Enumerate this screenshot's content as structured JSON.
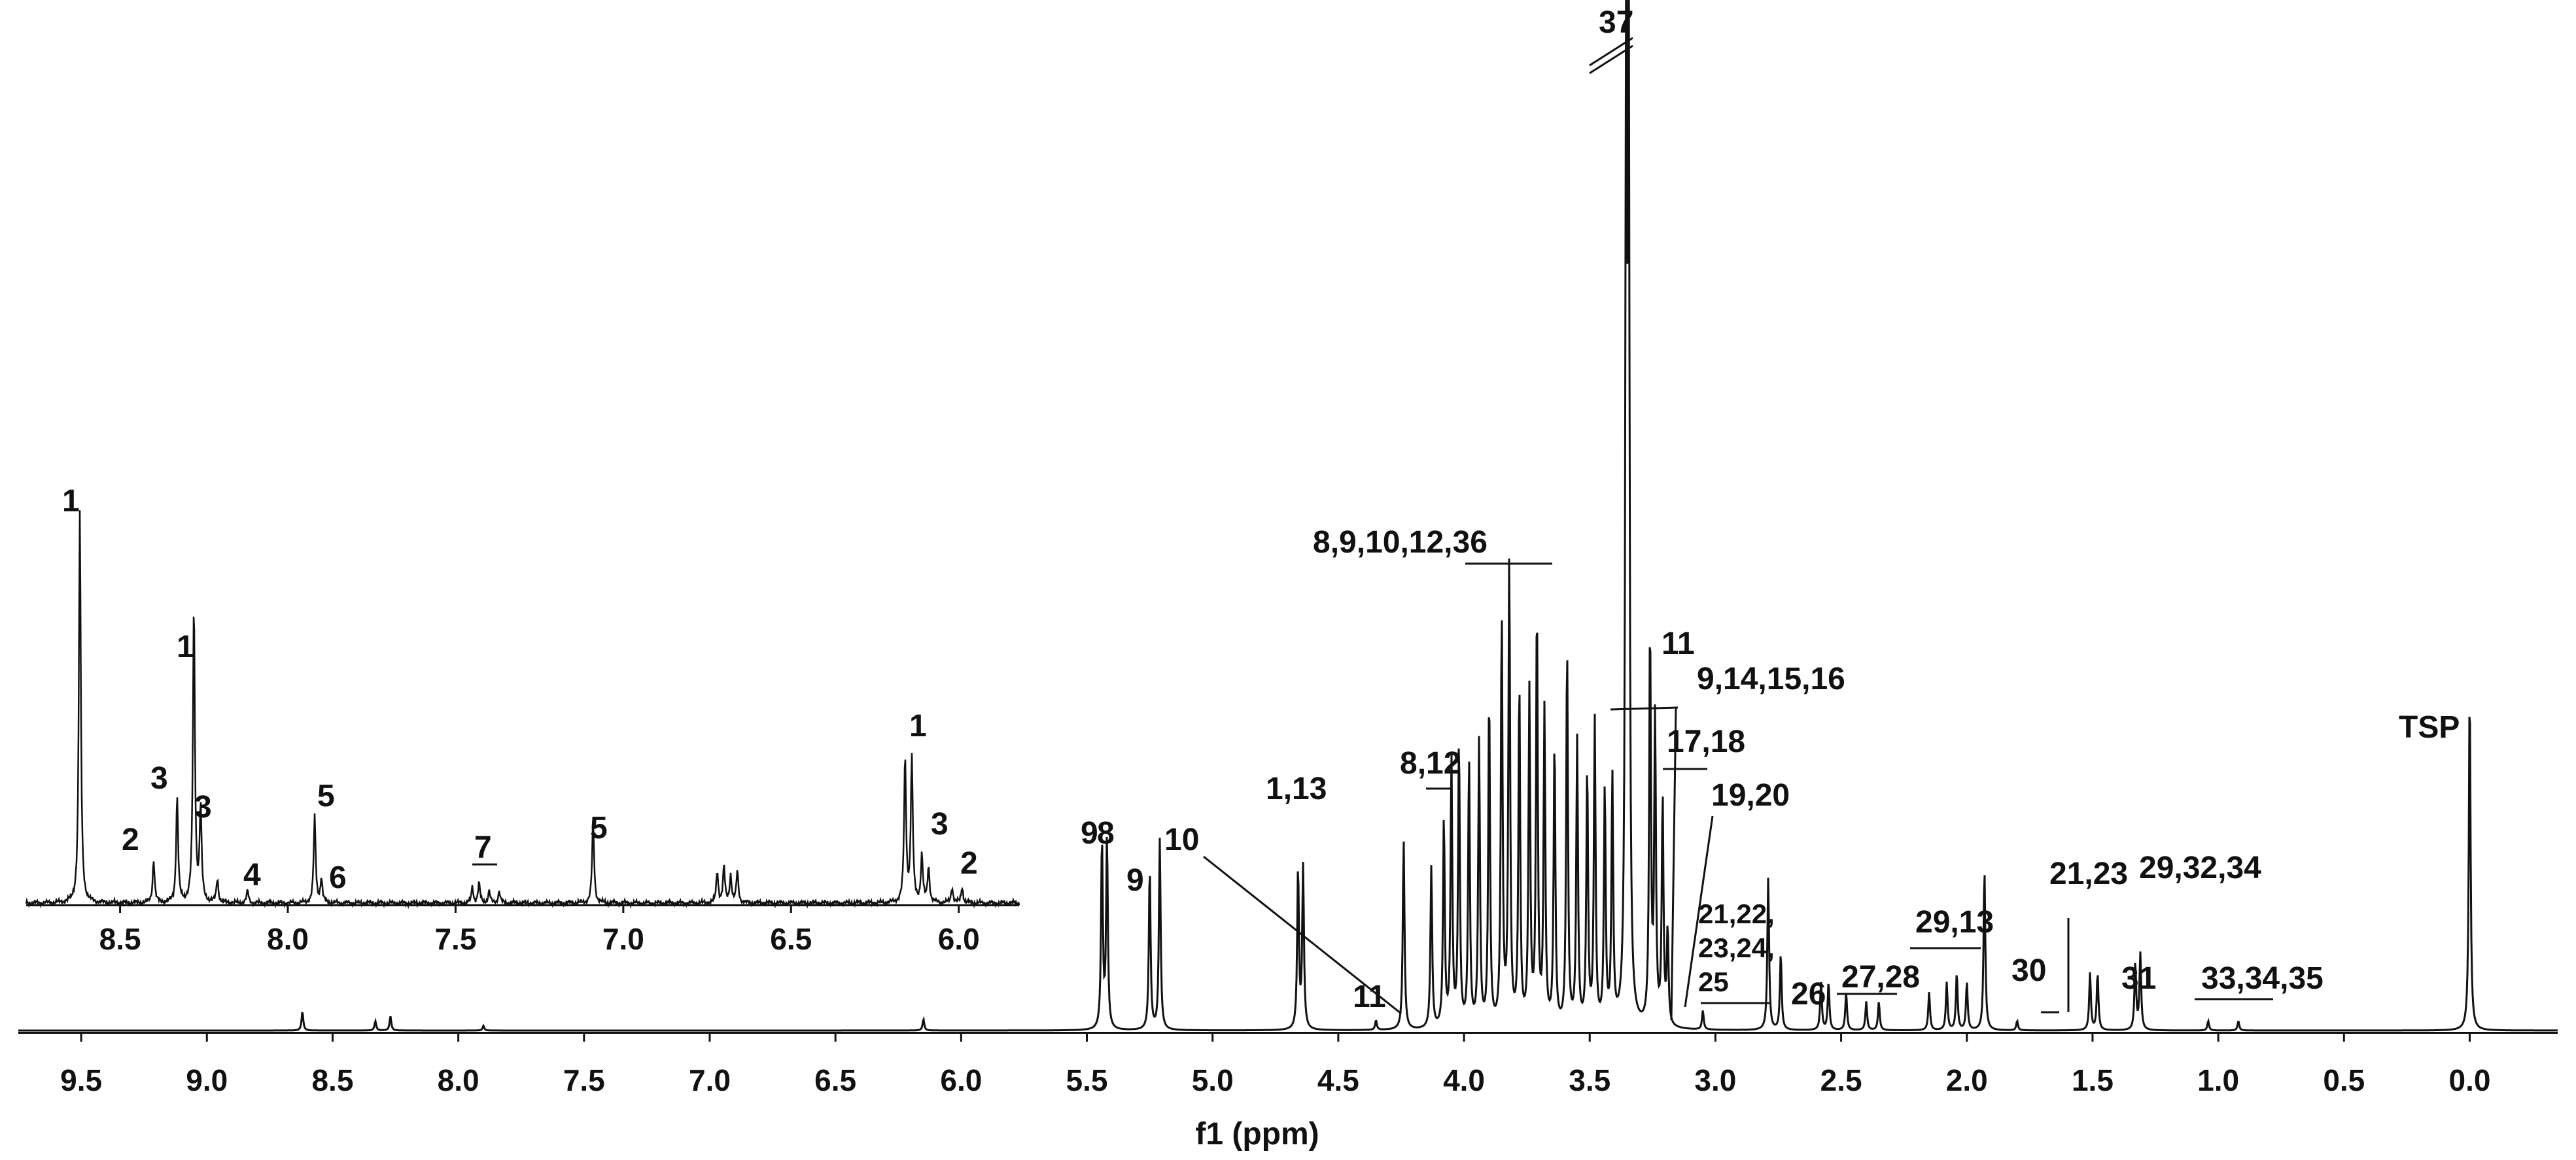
{
  "chart_data": [
    {
      "type": "line",
      "title": "",
      "xlabel": "f1 (ppm)",
      "ylabel": "",
      "x_reversed": true,
      "xlim": [
        -0.35,
        9.75
      ],
      "x_ticks": [
        "9.5",
        "9.0",
        "8.5",
        "8.0",
        "7.5",
        "7.0",
        "6.5",
        "6.0",
        "5.5",
        "5.0",
        "4.5",
        "4.0",
        "3.5",
        "3.0",
        "2.5",
        "2.0",
        "1.5",
        "1.0",
        "0.5",
        "0.0"
      ],
      "grid": false,
      "peaks": [
        {
          "ppm": 8.62,
          "h": 0.02
        },
        {
          "ppm": 8.33,
          "h": 0.01
        },
        {
          "ppm": 8.27,
          "h": 0.015
        },
        {
          "ppm": 7.9,
          "h": 0.005
        },
        {
          "ppm": 6.15,
          "h": 0.012
        },
        {
          "ppm": 5.44,
          "h": 0.2
        },
        {
          "ppm": 5.42,
          "h": 0.2
        },
        {
          "ppm": 5.25,
          "h": 0.17
        },
        {
          "ppm": 5.21,
          "h": 0.2
        },
        {
          "ppm": 4.66,
          "h": 0.17
        },
        {
          "ppm": 4.64,
          "h": 0.17
        },
        {
          "ppm": 4.35,
          "h": 0.01
        },
        {
          "ppm": 4.24,
          "h": 0.2
        },
        {
          "ppm": 4.13,
          "h": 0.17
        },
        {
          "ppm": 4.08,
          "h": 0.22
        },
        {
          "ppm": 4.05,
          "h": 0.28
        },
        {
          "ppm": 4.02,
          "h": 0.3
        },
        {
          "ppm": 3.98,
          "h": 0.28
        },
        {
          "ppm": 3.94,
          "h": 0.3
        },
        {
          "ppm": 3.9,
          "h": 0.35
        },
        {
          "ppm": 3.85,
          "h": 0.43
        },
        {
          "ppm": 3.82,
          "h": 0.49
        },
        {
          "ppm": 3.78,
          "h": 0.36
        },
        {
          "ppm": 3.74,
          "h": 0.35
        },
        {
          "ppm": 3.71,
          "h": 0.44
        },
        {
          "ppm": 3.68,
          "h": 0.33
        },
        {
          "ppm": 3.64,
          "h": 0.3
        },
        {
          "ppm": 3.59,
          "h": 0.4
        },
        {
          "ppm": 3.55,
          "h": 0.3
        },
        {
          "ppm": 3.51,
          "h": 0.27
        },
        {
          "ppm": 3.48,
          "h": 0.32
        },
        {
          "ppm": 3.44,
          "h": 0.25
        },
        {
          "ppm": 3.41,
          "h": 0.26
        },
        {
          "ppm": 3.355,
          "h": 1.02
        },
        {
          "ppm": 3.345,
          "h": 1.02
        },
        {
          "ppm": 3.26,
          "h": 0.42
        },
        {
          "ppm": 3.24,
          "h": 0.32
        },
        {
          "ppm": 3.21,
          "h": 0.24
        },
        {
          "ppm": 3.19,
          "h": 0.1
        },
        {
          "ppm": 3.05,
          "h": 0.02
        },
        {
          "ppm": 2.79,
          "h": 0.16
        },
        {
          "ppm": 2.74,
          "h": 0.08
        },
        {
          "ppm": 2.58,
          "h": 0.05
        },
        {
          "ppm": 2.55,
          "h": 0.05
        },
        {
          "ppm": 2.48,
          "h": 0.04
        },
        {
          "ppm": 2.4,
          "h": 0.03
        },
        {
          "ppm": 2.35,
          "h": 0.03
        },
        {
          "ppm": 2.15,
          "h": 0.04
        },
        {
          "ppm": 2.08,
          "h": 0.05
        },
        {
          "ppm": 2.04,
          "h": 0.06
        },
        {
          "ppm": 2.0,
          "h": 0.05
        },
        {
          "ppm": 1.93,
          "h": 0.17
        },
        {
          "ppm": 1.8,
          "h": 0.01
        },
        {
          "ppm": 1.51,
          "h": 0.06
        },
        {
          "ppm": 1.48,
          "h": 0.06
        },
        {
          "ppm": 1.33,
          "h": 0.07
        },
        {
          "ppm": 1.31,
          "h": 0.08
        },
        {
          "ppm": 1.04,
          "h": 0.01
        },
        {
          "ppm": 0.92,
          "h": 0.01
        },
        {
          "ppm": 0.0,
          "h": 0.36
        }
      ],
      "labels": [
        "8",
        "9",
        "10",
        "9",
        "1,13",
        "11",
        "8,12",
        "8,9,10,12,36",
        "37",
        "11",
        "9,14,15,16",
        "17,18",
        "19,20",
        "21,22,",
        "23,24,",
        "25",
        "26",
        "27,28",
        "29,13",
        "30",
        "21,23",
        "31",
        "29,32,34",
        "33,34,35",
        "TSP"
      ]
    },
    {
      "type": "line",
      "title": "",
      "xlabel": "",
      "x_reversed": true,
      "xlim": [
        5.82,
        8.78
      ],
      "x_ticks": [
        "8.5",
        "8.0",
        "7.5",
        "7.0",
        "6.5",
        "6.0"
      ],
      "grid": false,
      "peaks": [
        {
          "ppm": 8.62,
          "h": 1.0
        },
        {
          "ppm": 8.4,
          "h": 0.11
        },
        {
          "ppm": 8.33,
          "h": 0.27
        },
        {
          "ppm": 8.28,
          "h": 0.76
        },
        {
          "ppm": 8.26,
          "h": 0.24
        },
        {
          "ppm": 8.21,
          "h": 0.06
        },
        {
          "ppm": 8.12,
          "h": 0.03
        },
        {
          "ppm": 7.92,
          "h": 0.22
        },
        {
          "ppm": 7.9,
          "h": 0.06
        },
        {
          "ppm": 7.45,
          "h": 0.04
        },
        {
          "ppm": 7.43,
          "h": 0.05
        },
        {
          "ppm": 7.4,
          "h": 0.03
        },
        {
          "ppm": 7.37,
          "h": 0.03
        },
        {
          "ppm": 7.09,
          "h": 0.21
        },
        {
          "ppm": 6.72,
          "h": 0.08
        },
        {
          "ppm": 6.7,
          "h": 0.09
        },
        {
          "ppm": 6.68,
          "h": 0.07
        },
        {
          "ppm": 6.66,
          "h": 0.08
        },
        {
          "ppm": 6.16,
          "h": 0.37
        },
        {
          "ppm": 6.14,
          "h": 0.37
        },
        {
          "ppm": 6.11,
          "h": 0.12
        },
        {
          "ppm": 6.09,
          "h": 0.09
        },
        {
          "ppm": 6.02,
          "h": 0.04
        },
        {
          "ppm": 5.99,
          "h": 0.04
        }
      ],
      "labels": [
        "1",
        "2",
        "3",
        "1",
        "3",
        "4",
        "5",
        "6",
        "7",
        "5",
        "1",
        "3",
        "2"
      ]
    }
  ]
}
